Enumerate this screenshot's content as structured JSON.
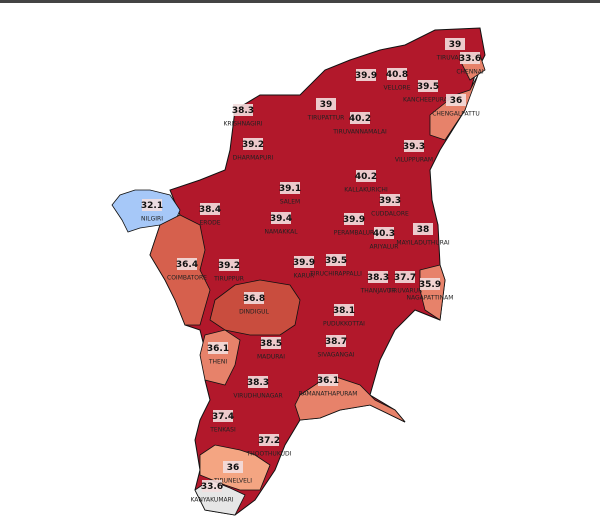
{
  "chart_data": {
    "type": "choropleth",
    "districts": [
      {
        "name": "TIRUVALLUR",
        "value": 39.0,
        "color": "#b2182b"
      },
      {
        "name": "CHENNAI",
        "value": 33.6,
        "color": "#e7826a"
      },
      {
        "name": null,
        "value": 39.9,
        "color": "#b2182b"
      },
      {
        "name": "VELLORE",
        "value": 40.8,
        "color": "#b2182b"
      },
      {
        "name": "KANCHEEPURAM",
        "value": 39.5,
        "color": "#b2182b"
      },
      {
        "name": "CHENGALPATTU",
        "value": 36.0,
        "color": "#e7826a"
      },
      {
        "name": "KRISHNAGIRI",
        "value": 38.3,
        "color": "#b2182b"
      },
      {
        "name": "TIRUPATTUR",
        "value": 39.0,
        "color": "#b2182b"
      },
      {
        "name": "TIRUVANNAMALAI",
        "value": 40.2,
        "color": "#b2182b"
      },
      {
        "name": "DHARMAPURI",
        "value": 39.2,
        "color": "#b2182b"
      },
      {
        "name": "VILUPPURAM",
        "value": 39.3,
        "color": "#b2182b"
      },
      {
        "name": "KALLAKURICHI",
        "value": 40.2,
        "color": "#b2182b"
      },
      {
        "name": "SALEM",
        "value": 39.1,
        "color": "#b2182b"
      },
      {
        "name": "NILGIRI",
        "value": 32.1,
        "color": "#a6c8f8"
      },
      {
        "name": "ERODE",
        "value": 38.4,
        "color": "#b2182b"
      },
      {
        "name": "CUDDALORE",
        "value": 39.3,
        "color": "#b2182b"
      },
      {
        "name": "NAMAKKAL",
        "value": 39.4,
        "color": "#b2182b"
      },
      {
        "name": "PERAMBALUR",
        "value": 39.9,
        "color": "#b2182b"
      },
      {
        "name": "ARIYALUR",
        "value": 40.3,
        "color": "#b2182b"
      },
      {
        "name": "MAYILADUTHURAI",
        "value": 38.0,
        "color": "#b2182b"
      },
      {
        "name": "COIMBATORE",
        "value": 36.4,
        "color": "#d6604d"
      },
      {
        "name": "TIRUPPUR",
        "value": 39.2,
        "color": "#b2182b"
      },
      {
        "name": "KARUR",
        "value": 39.9,
        "color": "#b2182b"
      },
      {
        "name": "TIRUCHIRAPPALLI",
        "value": 39.5,
        "color": "#b2182b"
      },
      {
        "name": "THANJAVUR",
        "value": 38.3,
        "color": "#b2182b"
      },
      {
        "name": "TIRUVARUR",
        "value": 37.7,
        "color": "#b2182b"
      },
      {
        "name": "NAGAPATTINAM",
        "value": 35.9,
        "color": "#e7826a"
      },
      {
        "name": "DINDIGUL",
        "value": 36.8,
        "color": "#c94d3e"
      },
      {
        "name": "PUDUKKOTTAI",
        "value": 38.1,
        "color": "#b2182b"
      },
      {
        "name": "SIVAGANGAI",
        "value": 38.7,
        "color": "#b2182b"
      },
      {
        "name": "THENI",
        "value": 36.1,
        "color": "#e7826a"
      },
      {
        "name": "MADURAI",
        "value": 38.5,
        "color": "#b2182b"
      },
      {
        "name": "VIRUDHUNAGAR",
        "value": 38.3,
        "color": "#b2182b"
      },
      {
        "name": "RAMANATHAPURAM",
        "value": 36.1,
        "color": "#e7826a"
      },
      {
        "name": "TENKASI",
        "value": 37.4,
        "color": "#b2182b"
      },
      {
        "name": "THOOTHUKUDI",
        "value": 37.2,
        "color": "#b2182b"
      },
      {
        "name": "TIRUNELVELI",
        "value": 36.0,
        "color": "#f4a582"
      },
      {
        "name": "KANYAKUMARI",
        "value": 33.6,
        "color": "#e6e6e6"
      }
    ]
  }
}
